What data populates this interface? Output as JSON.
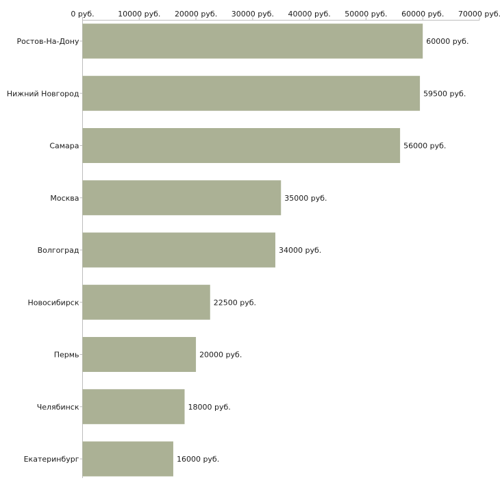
{
  "chart_data": {
    "type": "bar",
    "orientation": "horizontal",
    "title": "",
    "xlabel": "",
    "ylabel": "",
    "unit_suffix": " руб.",
    "xlim": [
      0,
      70000
    ],
    "ticks": [
      0,
      10000,
      20000,
      30000,
      40000,
      50000,
      60000,
      70000
    ],
    "tick_labels": [
      "0 руб.",
      "10000 руб.",
      "20000 руб.",
      "30000 руб.",
      "40000 руб.",
      "50000 руб.",
      "60000 руб.",
      "70000 руб."
    ],
    "axis_position": "top",
    "grid": false,
    "bar_color": "#abb195",
    "categories": [
      "Ростов-На-Дону",
      "Нижний Новгород",
      "Самара",
      "Москва",
      "Волгоград",
      "Новосибирск",
      "Пермь",
      "Челябинск",
      "Екатеринбург"
    ],
    "values": [
      60000,
      59500,
      56000,
      35000,
      34000,
      22500,
      20000,
      18000,
      16000
    ],
    "value_labels": [
      "60000 руб.",
      "59500 руб.",
      "56000 руб.",
      "35000 руб.",
      "34000 руб.",
      "22500 руб.",
      "20000 руб.",
      "18000 руб.",
      "16000 руб."
    ]
  }
}
